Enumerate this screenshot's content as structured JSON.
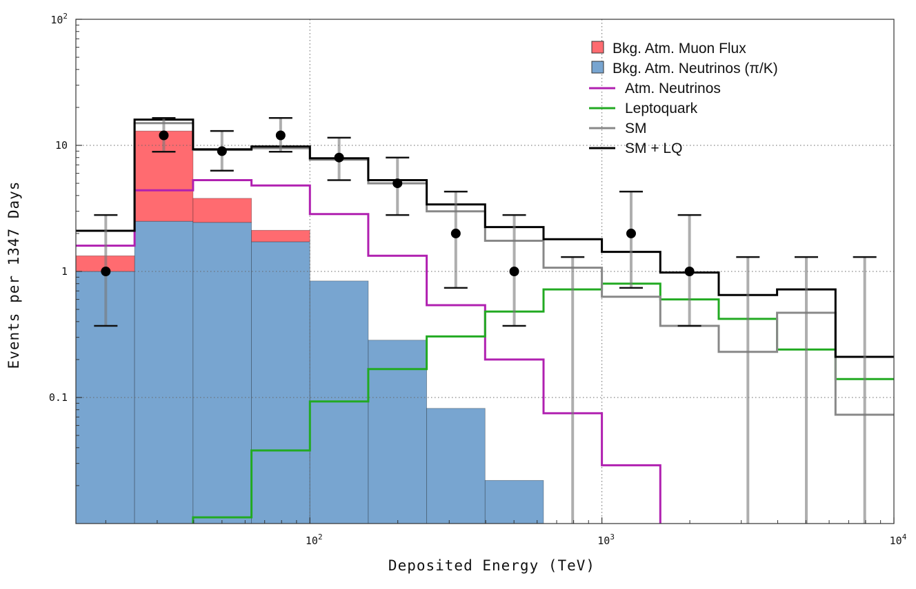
{
  "chart_data": {
    "type": "histogram",
    "xscale": "log",
    "yscale": "log",
    "xlim": [
      15.8,
      10000
    ],
    "ylim": [
      0.01,
      100
    ],
    "xlabel": "Deposited Energy (TeV)",
    "ylabel": "Events per 1347 Days",
    "grid": "dotted",
    "legend_position": "top-right",
    "xticks": [
      {
        "base": "10",
        "exp": "2",
        "value": 100
      },
      {
        "base": "10",
        "exp": "3",
        "value": 1000
      },
      {
        "base": "10",
        "exp": "4",
        "value": 10000
      }
    ],
    "yticks": [
      {
        "text": "0.1",
        "value": 0.1
      },
      {
        "text": "1",
        "value": 1
      },
      {
        "text": "10",
        "value": 10
      },
      {
        "base": "10",
        "exp": "2",
        "value": 100
      }
    ],
    "bin_edges": [
      15.8,
      25.1,
      39.8,
      63.1,
      100,
      158.5,
      251.2,
      398.1,
      631,
      1000,
      1585,
      2512,
      3981,
      6310,
      10000
    ],
    "stacked_areas": [
      {
        "name": "Bkg. Atm. Neutrinos (π/K)",
        "color": "#78a5d0",
        "values": [
          1.0,
          2.5,
          2.45,
          1.72,
          0.84,
          0.285,
          0.082,
          0.022,
          null,
          null,
          null,
          null,
          null,
          null
        ]
      },
      {
        "name": "Bkg. Atm. Muon Flux",
        "color": "#ff6b70",
        "values": [
          1.33,
          13.0,
          3.8,
          2.12,
          null,
          null,
          null,
          null,
          null,
          null,
          null,
          null,
          null,
          null
        ]
      }
    ],
    "series": [
      {
        "name": "Atm. Neutrinos",
        "color": "#b020b0",
        "values": [
          1.6,
          4.4,
          5.3,
          4.8,
          2.85,
          1.33,
          0.54,
          0.2,
          0.075,
          0.029,
          null,
          null,
          null,
          null
        ]
      },
      {
        "name": "Leptoquark",
        "color": "#22aa22",
        "values": [
          null,
          null,
          0.0112,
          0.038,
          0.093,
          0.168,
          0.305,
          0.48,
          0.72,
          0.8,
          0.6,
          0.42,
          0.24,
          0.14
        ]
      },
      {
        "name": "SM",
        "color": "#888888",
        "values": [
          2.1,
          15.0,
          9.2,
          9.5,
          7.7,
          5.0,
          3.0,
          1.75,
          1.07,
          0.63,
          0.37,
          0.23,
          0.47,
          0.073
        ]
      },
      {
        "name": "SM + LQ",
        "color": "#000000",
        "values": [
          2.1,
          16.0,
          9.3,
          9.8,
          7.9,
          5.3,
          3.4,
          2.25,
          1.8,
          1.43,
          0.98,
          0.65,
          0.72,
          0.21
        ]
      }
    ],
    "data_points": [
      {
        "x": 20,
        "y": 1,
        "ylo": 0.37,
        "yhi": 2.8
      },
      {
        "x": 31.6,
        "y": 12,
        "ylo": 8.9,
        "yhi": 16.5
      },
      {
        "x": 50,
        "y": 9,
        "ylo": 6.3,
        "yhi": 13
      },
      {
        "x": 79.4,
        "y": 12,
        "ylo": 8.9,
        "yhi": 16.5
      },
      {
        "x": 125.9,
        "y": 8,
        "ylo": 5.3,
        "yhi": 11.5
      },
      {
        "x": 199.5,
        "y": 5,
        "ylo": 2.8,
        "yhi": 8
      },
      {
        "x": 316,
        "y": 2,
        "ylo": 0.74,
        "yhi": 4.3
      },
      {
        "x": 501,
        "y": 1,
        "ylo": 0.37,
        "yhi": 2.8
      },
      {
        "x": 794,
        "y": null,
        "ylo": 0.01,
        "yhi": 1.3
      },
      {
        "x": 1259,
        "y": 2,
        "ylo": 0.74,
        "yhi": 4.3
      },
      {
        "x": 1995,
        "y": 1,
        "ylo": 0.37,
        "yhi": 2.8
      },
      {
        "x": 3162,
        "y": null,
        "ylo": 0.01,
        "yhi": 1.3
      },
      {
        "x": 5012,
        "y": null,
        "ylo": 0.01,
        "yhi": 1.3
      },
      {
        "x": 7943,
        "y": null,
        "ylo": 0.01,
        "yhi": 1.3
      }
    ],
    "legend": [
      {
        "label": "Bkg. Atm. Muon Flux",
        "kind": "box",
        "color": "#ff6b70"
      },
      {
        "label": "Bkg. Atm. Neutrinos (π/K)",
        "kind": "box",
        "color": "#78a5d0"
      },
      {
        "label": "Atm. Neutrinos",
        "kind": "line",
        "color": "#b020b0"
      },
      {
        "label": "Leptoquark",
        "kind": "line",
        "color": "#22aa22"
      },
      {
        "label": "SM",
        "kind": "line",
        "color": "#888888"
      },
      {
        "label": "SM + LQ",
        "kind": "line",
        "color": "#000000"
      }
    ]
  }
}
